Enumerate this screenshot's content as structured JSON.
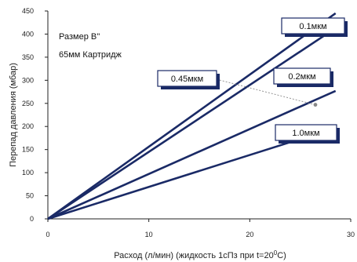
{
  "chart_data": {
    "type": "line",
    "title": "",
    "annotation_lines": [
      "Размер B''",
      "65мм Картридж"
    ],
    "xlabel_prefix": "Расход (л/мин) (жидкость 1сПз при t=20",
    "xlabel_sup": "0",
    "xlabel_suffix": "С)",
    "ylabel": "Перепад давления (мбар)",
    "xlim": [
      0,
      30
    ],
    "ylim": [
      0,
      450
    ],
    "x_ticks": [
      0,
      10,
      20,
      30
    ],
    "y_ticks": [
      0,
      50,
      100,
      150,
      200,
      250,
      300,
      350,
      400,
      450
    ],
    "grid": false,
    "series": [
      {
        "name": "0.1мкм",
        "x": [
          0,
          28.5
        ],
        "y": [
          0,
          445
        ]
      },
      {
        "name": "0.45мкм",
        "x": [
          0,
          28.5
        ],
        "y": [
          0,
          413
        ]
      },
      {
        "name": "0.2мкм",
        "x": [
          0,
          28.5
        ],
        "y": [
          0,
          277
        ]
      },
      {
        "name": "1.0мкм",
        "x": [
          0,
          28.5
        ],
        "y": [
          0,
          197
        ]
      }
    ],
    "label_pointer": {
      "series": "0.45мкм",
      "x": 26.5,
      "y": 247
    }
  }
}
